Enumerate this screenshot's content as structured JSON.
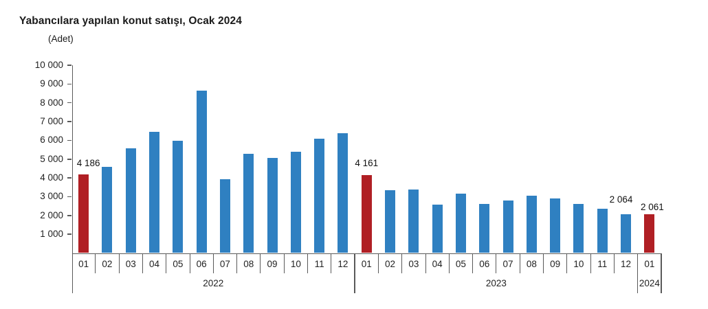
{
  "chart_data": {
    "type": "bar",
    "title": "Yabancılara yapılan konut satışı, Ocak 2024",
    "ylabel": "(Adet)",
    "xlabel": "",
    "ylim": [
      0,
      10000
    ],
    "ytick_step": 1000,
    "ytick_labels": [
      "10 000",
      "9 000",
      "8 000",
      "7 000",
      "6 000",
      "5 000",
      "4 000",
      "3 000",
      "2 000",
      "1 000"
    ],
    "grid": false,
    "legend": "none",
    "groups": [
      {
        "year": "2022",
        "months": [
          "01",
          "02",
          "03",
          "04",
          "05",
          "06",
          "07",
          "08",
          "09",
          "10",
          "11",
          "12"
        ],
        "values": [
          4186,
          4591,
          5567,
          6447,
          5962,
          8630,
          3936,
          5273,
          5069,
          5377,
          6083,
          6386
        ]
      },
      {
        "year": "2023",
        "months": [
          "01",
          "02",
          "03",
          "04",
          "05",
          "06",
          "07",
          "08",
          "09",
          "10",
          "11",
          "12"
        ],
        "values": [
          4161,
          3350,
          3395,
          2574,
          3179,
          2625,
          2801,
          3058,
          2925,
          2610,
          2362,
          2064
        ]
      },
      {
        "year": "2024",
        "months": [
          "01"
        ],
        "values": [
          2061
        ]
      }
    ],
    "highlight_rule": "January (month 01) of each year is highlighted red; other months blue",
    "annotations": [
      {
        "group": 0,
        "month": "01",
        "label": "4 186"
      },
      {
        "group": 1,
        "month": "01",
        "label": "4 161"
      },
      {
        "group": 1,
        "month": "12",
        "label": "2 064"
      },
      {
        "group": 2,
        "month": "01",
        "label": "2 061"
      }
    ],
    "colors": {
      "bar": "#2f80c1",
      "highlight": "#b01f24"
    }
  }
}
